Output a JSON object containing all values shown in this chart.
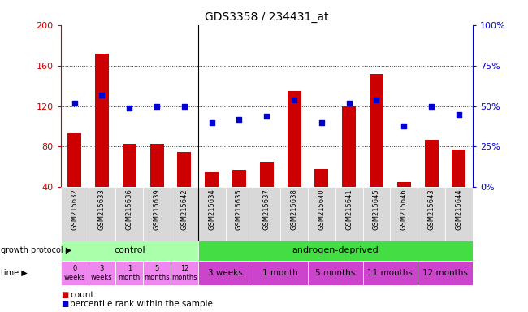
{
  "title": "GDS3358 / 234431_at",
  "samples": [
    "GSM215632",
    "GSM215633",
    "GSM215636",
    "GSM215639",
    "GSM215642",
    "GSM215634",
    "GSM215635",
    "GSM215637",
    "GSM215638",
    "GSM215640",
    "GSM215641",
    "GSM215645",
    "GSM215646",
    "GSM215643",
    "GSM215644"
  ],
  "counts": [
    93,
    172,
    83,
    83,
    75,
    55,
    57,
    65,
    135,
    58,
    120,
    152,
    45,
    87,
    77
  ],
  "percentiles": [
    52,
    57,
    49,
    50,
    50,
    40,
    42,
    44,
    54,
    40,
    52,
    54,
    38,
    50,
    45
  ],
  "ylim_left": [
    40,
    200
  ],
  "ylim_right": [
    0,
    100
  ],
  "yticks_left": [
    40,
    80,
    120,
    160,
    200
  ],
  "yticks_right": [
    0,
    25,
    50,
    75,
    100
  ],
  "bar_color": "#cc0000",
  "dot_color": "#0000cc",
  "bg_color": "#ffffff",
  "ctrl_color": "#aaffaa",
  "androgen_color": "#44dd44",
  "time_ctrl_color": "#ee88ee",
  "time_androgen_color": "#cc44cc",
  "n_control": 5,
  "control_label": "control",
  "androgen_label": "androgen-deprived",
  "time_labels_control": [
    "0\nweeks",
    "3\nweeks",
    "1\nmonth",
    "5\nmonths",
    "12\nmonths"
  ],
  "time_labels_androgen": [
    "3 weeks",
    "1 month",
    "5 months",
    "11 months",
    "12 months"
  ],
  "androgen_time_spans": [
    1,
    1,
    1,
    1,
    1
  ],
  "growth_protocol_label": "growth protocol",
  "time_label": "time",
  "left_axis_color": "#cc0000",
  "right_axis_color": "#0000cc",
  "legend_count_label": "count",
  "legend_percentile_label": "percentile rank within the sample",
  "sample_bg_color": "#d8d8d8",
  "grid_dotted_color": "#333333"
}
